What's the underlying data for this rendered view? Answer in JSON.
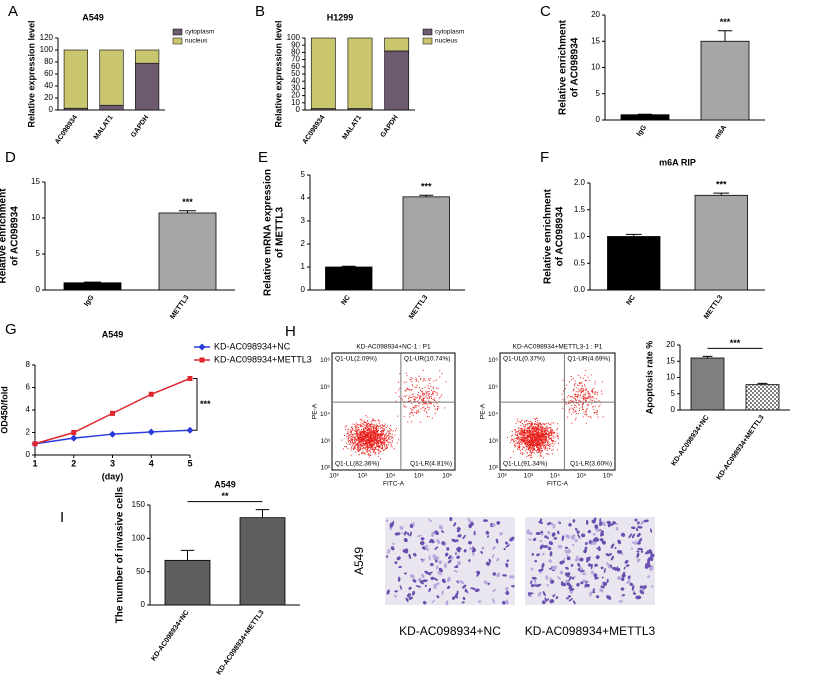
{
  "chart_data": [
    {
      "panel": "A",
      "type": "stacked_bar",
      "title": "A549",
      "ylabel": [
        "Relative expression level"
      ],
      "categories": [
        "AC098934",
        "MALAT1",
        "GAPDH"
      ],
      "series": [
        {
          "name": "cytoplasm",
          "color": "#6e5a6e",
          "values": [
            3,
            8,
            78
          ]
        },
        {
          "name": "nucleus",
          "color": "#c9c66f",
          "values": [
            97,
            92,
            22
          ]
        }
      ],
      "ylim": [
        0,
        120
      ],
      "yticks": [
        0,
        20,
        40,
        60,
        80,
        100,
        120
      ],
      "legend": "upper right"
    },
    {
      "panel": "B",
      "type": "stacked_bar",
      "title": "H1299",
      "ylabel": [
        "Relative expression level"
      ],
      "categories": [
        "AC098934",
        "MALAT1",
        "GAPDH"
      ],
      "series": [
        {
          "name": "cytoplasm",
          "color": "#6e5a6e",
          "values": [
            2,
            2,
            82
          ]
        },
        {
          "name": "nucleus",
          "color": "#c9c66f",
          "values": [
            98,
            98,
            18
          ]
        }
      ],
      "ylim": [
        0,
        100
      ],
      "yticks": [
        0,
        10,
        20,
        30,
        40,
        50,
        60,
        70,
        80,
        90,
        100
      ],
      "legend": "upper right"
    },
    {
      "panel": "C",
      "type": "bar",
      "ylabel": [
        "Relative enrichment",
        "of AC098934"
      ],
      "categories": [
        "IgG",
        "m6A"
      ],
      "values": [
        1,
        15
      ],
      "errors": [
        0.1,
        2
      ],
      "colors": [
        "#000000",
        "#a6a6a6"
      ],
      "ylim": [
        0,
        20
      ],
      "yticks": [
        0,
        5,
        10,
        15,
        20
      ],
      "annotation": "***"
    },
    {
      "panel": "D",
      "type": "bar",
      "ylabel": [
        "Relative enrichment",
        "of AC098934"
      ],
      "categories": [
        "IgG",
        "METTL3"
      ],
      "values": [
        1,
        10.7
      ],
      "errors": [
        0.1,
        0.3
      ],
      "colors": [
        "#000000",
        "#a6a6a6"
      ],
      "ylim": [
        0,
        15
      ],
      "yticks": [
        0,
        5,
        10,
        15
      ],
      "annotation": "***"
    },
    {
      "panel": "E",
      "type": "bar",
      "ylabel": [
        "Relative mRNA expression",
        "of METTL3"
      ],
      "categories": [
        "NC",
        "METTL3"
      ],
      "values": [
        1,
        4.05
      ],
      "errors": [
        0.03,
        0.07
      ],
      "colors": [
        "#000000",
        "#a6a6a6"
      ],
      "ylim": [
        0,
        5
      ],
      "yticks": [
        0,
        1,
        2,
        3,
        4,
        5
      ],
      "annotation": "***"
    },
    {
      "panel": "F",
      "type": "bar",
      "title": "m6A RIP",
      "ylabel": [
        "Relative enrichment",
        "of AC098934"
      ],
      "categories": [
        "NC",
        "METTL3"
      ],
      "values": [
        1,
        1.77
      ],
      "errors": [
        0.04,
        0.04
      ],
      "colors": [
        "#000000",
        "#a6a6a6"
      ],
      "ylim": [
        0,
        2
      ],
      "yticks": [
        {
          "value": 0,
          "label": "0.0"
        },
        {
          "value": 0.5,
          "label": "0.5"
        },
        {
          "value": 1,
          "label": "1.0"
        },
        {
          "value": 1.5,
          "label": "1.5"
        },
        {
          "value": 2,
          "label": "2.0"
        }
      ],
      "annotation": "***"
    },
    {
      "panel": "G",
      "type": "line",
      "title": "A549",
      "xlabel": "(day)",
      "ylabel": [
        "OD450/fold"
      ],
      "x": [
        1,
        2,
        3,
        4,
        5
      ],
      "series": [
        {
          "name": "KD-AC098934+NC",
          "color": "#2a3adb",
          "marker": "diamond",
          "values": [
            1,
            1.5,
            1.85,
            2.05,
            2.2
          ]
        },
        {
          "name": "KD-AC098934+METTL3",
          "color": "#e0262b",
          "marker": "square",
          "values": [
            1,
            2,
            3.7,
            5.4,
            6.8
          ]
        }
      ],
      "xlim": [
        1,
        5
      ],
      "xticks": [
        1,
        2,
        3,
        4,
        5
      ],
      "ylim": [
        0,
        8
      ],
      "yticks": [
        0,
        2,
        4,
        6,
        8
      ],
      "annotation": "***",
      "legend": "upper right"
    },
    {
      "panel": "H",
      "type": "flow_cytometry",
      "xlabel": "FITC-A",
      "ylabel": "PE-A",
      "tick_labels": [
        "10²",
        "10³",
        "10⁴",
        "10⁵",
        "10⁶"
      ],
      "plots": [
        {
          "title": "KD-AC098934+NC-1 : P1",
          "quadrants": [
            "Q1-UL(2.09%)",
            "Q1-UR(10.74%)",
            "Q1-LL(82.36%)",
            "Q1-LR(4.81%)"
          ]
        },
        {
          "title": "KD-AC098934+METTL3-1 : P1",
          "quadrants": [
            "Q1-UL(0.37%)",
            "Q1-UR(4.69%)",
            "Q1-LL(91.34%)",
            "Q1-LR(3.60%)"
          ]
        }
      ]
    },
    {
      "type": "bar",
      "ylabel": [
        "Apoptosis rate %"
      ],
      "categories": [
        "KD-AC098934+NC",
        "KD-AC098934+METTL3"
      ],
      "values": [
        16,
        7.8
      ],
      "errors": [
        0.5,
        0.4
      ],
      "colors": [
        "#7f7f7f",
        "#7f7f7f"
      ],
      "hatch": [
        false,
        true
      ],
      "ylim": [
        0,
        20
      ],
      "yticks": [
        0,
        5,
        10,
        15,
        20
      ],
      "annotation": "***",
      "significance_line": true
    },
    {
      "panel": "I",
      "type": "bar",
      "title": "A549",
      "ylabel": [
        "The number of invasive cells"
      ],
      "categories": [
        "KD-AC098934+NC",
        "KD-AC098934+METTL3"
      ],
      "values": [
        67,
        131
      ],
      "errors": [
        15,
        12
      ],
      "colors": [
        "#5f5f5f",
        "#5f5f5f"
      ],
      "ylim": [
        0,
        150
      ],
      "yticks": [
        0,
        50,
        100,
        150
      ],
      "annotation": "**",
      "significance_line": true
    },
    {
      "type": "micrograph",
      "row_label": "A549",
      "captions": [
        "KD-AC098934+NC",
        "KD-AC098934+METTL3"
      ]
    }
  ]
}
